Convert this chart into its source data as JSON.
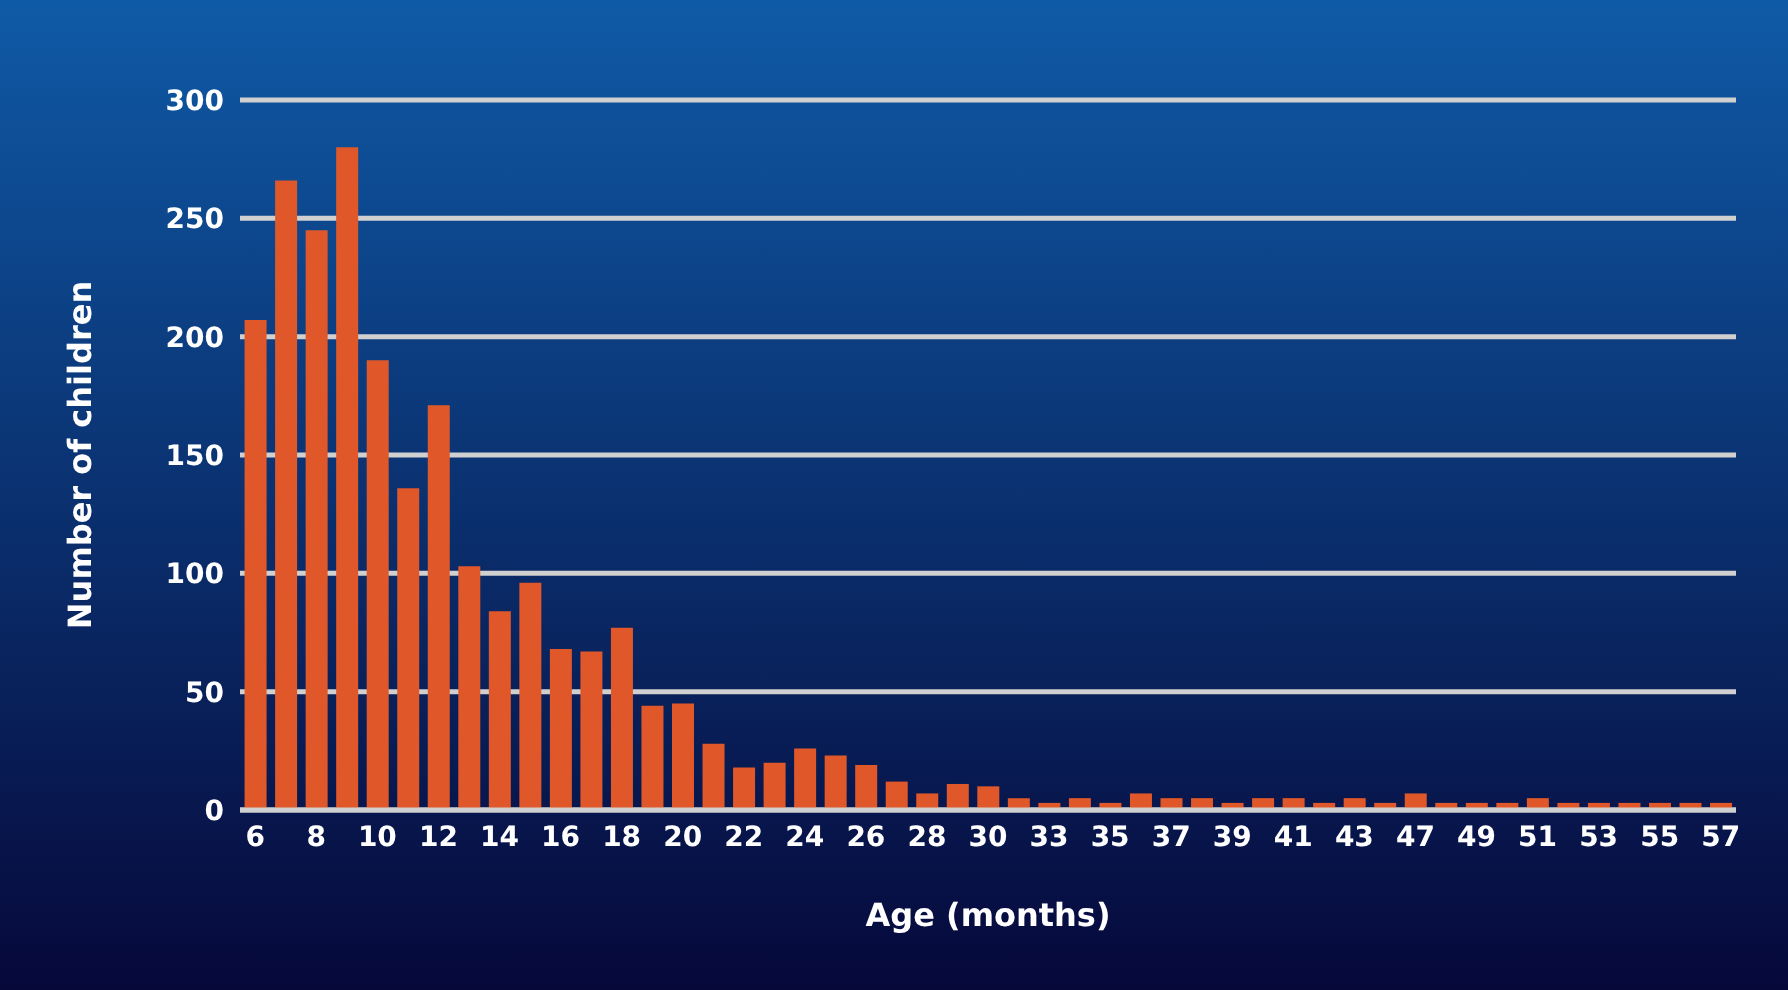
{
  "chart_data": {
    "type": "bar",
    "xlabel": "Age (months)",
    "ylabel": "Number of children",
    "categories": [
      "6",
      null,
      "8",
      null,
      "10",
      null,
      "12",
      null,
      "14",
      null,
      "16",
      null,
      "18",
      null,
      "20",
      null,
      "22",
      null,
      "24",
      null,
      "26",
      null,
      "28",
      null,
      "30",
      null,
      "33",
      null,
      "35",
      null,
      "37",
      null,
      "39",
      null,
      "41",
      null,
      "43",
      null,
      "47",
      null,
      "49",
      null,
      "51",
      null,
      "53",
      null,
      "55",
      null,
      "57"
    ],
    "values": [
      207,
      266,
      245,
      280,
      190,
      136,
      171,
      103,
      84,
      96,
      68,
      67,
      77,
      44,
      45,
      28,
      18,
      20,
      26,
      23,
      19,
      12,
      7,
      11,
      10,
      5,
      3,
      5,
      3,
      7,
      5,
      5,
      3,
      5,
      5,
      3,
      5,
      3,
      7,
      3,
      3,
      3,
      5,
      3,
      3,
      3,
      3,
      3,
      3
    ],
    "color": "#e0582a",
    "ylim": [
      0,
      300
    ],
    "yticks": [
      0,
      50,
      100,
      150,
      200,
      250,
      300
    ],
    "grid": "y"
  }
}
